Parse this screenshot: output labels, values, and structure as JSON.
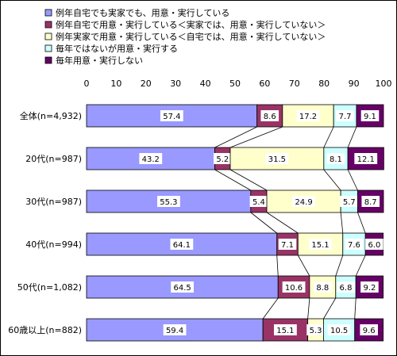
{
  "chart_data": {
    "type": "bar",
    "orientation": "horizontal",
    "stacked": true,
    "percent": true,
    "xlim": [
      0,
      100
    ],
    "xticks": [
      0,
      10,
      20,
      30,
      40,
      50,
      60,
      70,
      80,
      90,
      100
    ],
    "grid": false,
    "legend_position": "top",
    "categories": [
      "全体(n=4,932)",
      "20代(n=987)",
      "30代(n=987)",
      "40代(n=994)",
      "50代(n=1,082)",
      "60歳以上(n=882)"
    ],
    "series": [
      {
        "name": "例年自宅でも実家でも、用意・実行している",
        "color": "#9999ff",
        "values": [
          57.4,
          43.2,
          55.3,
          64.1,
          64.5,
          59.4
        ]
      },
      {
        "name": "例年自宅で用意・実行している＜実家では、用意・実行していない＞",
        "color": "#993366",
        "values": [
          8.6,
          5.2,
          5.4,
          7.1,
          10.6,
          15.1
        ]
      },
      {
        "name": "例年実家で用意・実行している＜自宅では、用意・実行していない＞",
        "color": "#ffffcc",
        "values": [
          17.2,
          31.5,
          24.9,
          15.1,
          8.8,
          5.3
        ]
      },
      {
        "name": "毎年ではないが用意・実行する",
        "color": "#ccffff",
        "values": [
          7.7,
          8.1,
          5.7,
          7.6,
          6.8,
          10.5
        ]
      },
      {
        "name": "毎年用意・実行しない",
        "color": "#660066",
        "values": [
          9.1,
          12.1,
          8.7,
          6.0,
          9.2,
          9.6
        ]
      }
    ]
  }
}
